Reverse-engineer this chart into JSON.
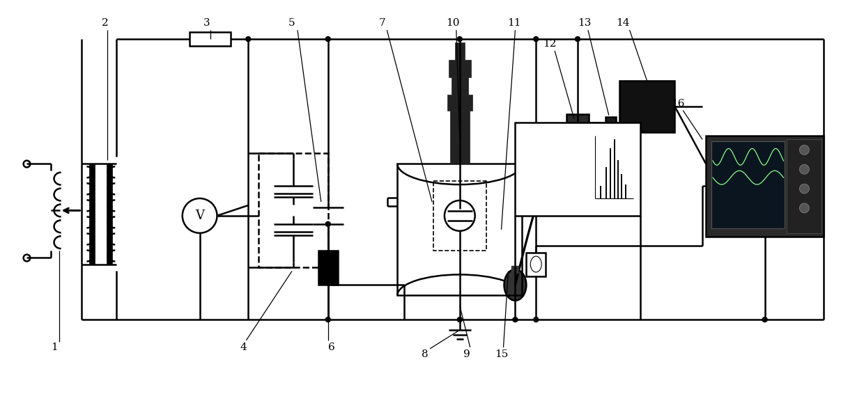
{
  "fig_width": 12.4,
  "fig_height": 5.66,
  "bg_color": "#ffffff",
  "lc": "#000000",
  "lw": 1.8,
  "lw_thin": 0.9,
  "lw_thick": 2.5
}
